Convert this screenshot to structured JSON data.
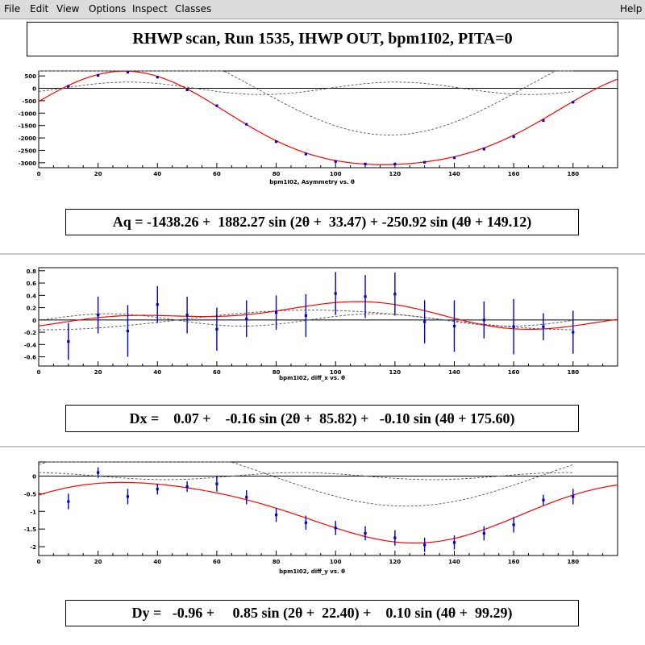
{
  "menu": {
    "file": "File",
    "edit": "Edit",
    "view": "View",
    "options": "Options",
    "inspect": "Inspect",
    "classes": "Classes",
    "help": "Help"
  },
  "title": "RHWP scan, Run 1535, IHWP OUT, bpm1I02, PITA=0",
  "formulas": {
    "aq": "Aq = -1438.26 +  1882.27 sin (2θ +  33.47) + -250.92 sin (4θ + 149.12)",
    "dx": "Dx =    0.07 +    -0.16 sin (2θ +  85.82) +   -0.10 sin (4θ + 175.60)",
    "dy": "Dy =   -0.96 +     0.85 sin (2θ +  22.40) +    0.10 sin (4θ +  99.29)"
  },
  "colors": {
    "fit": "#ff0000",
    "points": "#0000cc",
    "components": "#555555",
    "axis": "#000000"
  },
  "chart_data": [
    {
      "type": "scatter",
      "xlabel": "bpm1I02, Asymmetry vs. θ",
      "ylabel": "",
      "xlim": [
        0,
        195
      ],
      "ylim": [
        -3200,
        700
      ],
      "xticks": [
        0,
        20,
        40,
        60,
        80,
        100,
        120,
        140,
        160,
        180
      ],
      "yticks": [
        500,
        0,
        -500,
        -1000,
        -1500,
        -2000,
        -2500,
        -3000
      ],
      "fit": {
        "c": -1438.26,
        "a2": 1882.27,
        "p2": 33.47,
        "a4": -250.92,
        "p4": 149.12
      },
      "x": [
        10,
        20,
        30,
        40,
        50,
        60,
        70,
        80,
        90,
        100,
        110,
        120,
        130,
        140,
        150,
        160,
        170,
        180
      ],
      "y": [
        80,
        520,
        650,
        450,
        -60,
        -700,
        -1450,
        -2150,
        -2650,
        -2950,
        -3050,
        -3050,
        -2980,
        -2800,
        -2450,
        -1950,
        -1300,
        -560
      ],
      "err": [
        0,
        0,
        0,
        0,
        0,
        0,
        0,
        0,
        0,
        0,
        0,
        0,
        0,
        0,
        0,
        0,
        0,
        0
      ]
    },
    {
      "type": "scatter",
      "xlabel": "bpm1I02,  diff_x vs. θ",
      "ylabel": "",
      "xlim": [
        0,
        195
      ],
      "ylim": [
        -0.75,
        0.85
      ],
      "xticks": [
        0,
        20,
        40,
        60,
        80,
        100,
        120,
        140,
        160,
        180
      ],
      "yticks": [
        0.8,
        0.6,
        0.4,
        0.2,
        0,
        -0.2,
        -0.4,
        -0.6
      ],
      "fit": {
        "c": 0.07,
        "a2": -0.16,
        "p2": 85.82,
        "a4": -0.1,
        "p4": 175.6
      },
      "x": [
        10,
        20,
        30,
        40,
        50,
        60,
        70,
        80,
        90,
        100,
        110,
        120,
        130,
        140,
        150,
        160,
        170,
        180
      ],
      "y": [
        -0.35,
        0.08,
        -0.18,
        0.25,
        0.08,
        -0.15,
        0.02,
        0.12,
        0.07,
        0.43,
        0.38,
        0.42,
        -0.03,
        -0.1,
        0.0,
        -0.11,
        -0.11,
        -0.2
      ],
      "err": [
        0.3,
        0.3,
        0.42,
        0.3,
        0.3,
        0.35,
        0.3,
        0.28,
        0.35,
        0.35,
        0.35,
        0.35,
        0.35,
        0.42,
        0.3,
        0.45,
        0.22,
        0.35
      ]
    },
    {
      "type": "scatter",
      "xlabel": "bpm1I02,  diff_y vs. θ",
      "ylabel": "",
      "xlim": [
        0,
        195
      ],
      "ylim": [
        -2.25,
        0.4
      ],
      "xticks": [
        0,
        20,
        40,
        60,
        80,
        100,
        120,
        140,
        160,
        180
      ],
      "yticks": [
        0,
        -0.5,
        -1,
        -1.5,
        -2
      ],
      "fit": {
        "c": -0.96,
        "a2": 0.85,
        "p2": 22.4,
        "a4": 0.1,
        "p4": 99.29
      },
      "x": [
        10,
        20,
        30,
        40,
        50,
        60,
        70,
        80,
        90,
        100,
        110,
        120,
        130,
        140,
        150,
        160,
        170,
        180
      ],
      "y": [
        -0.72,
        0.1,
        -0.58,
        -0.37,
        -0.3,
        -0.22,
        -0.6,
        -1.1,
        -1.32,
        -1.47,
        -1.62,
        -1.75,
        -1.95,
        -1.88,
        -1.62,
        -1.38,
        -0.68,
        -0.58
      ],
      "err": [
        0.22,
        0.15,
        0.22,
        0.15,
        0.15,
        0.22,
        0.2,
        0.2,
        0.2,
        0.2,
        0.2,
        0.22,
        0.2,
        0.2,
        0.2,
        0.22,
        0.15,
        0.22
      ]
    }
  ]
}
